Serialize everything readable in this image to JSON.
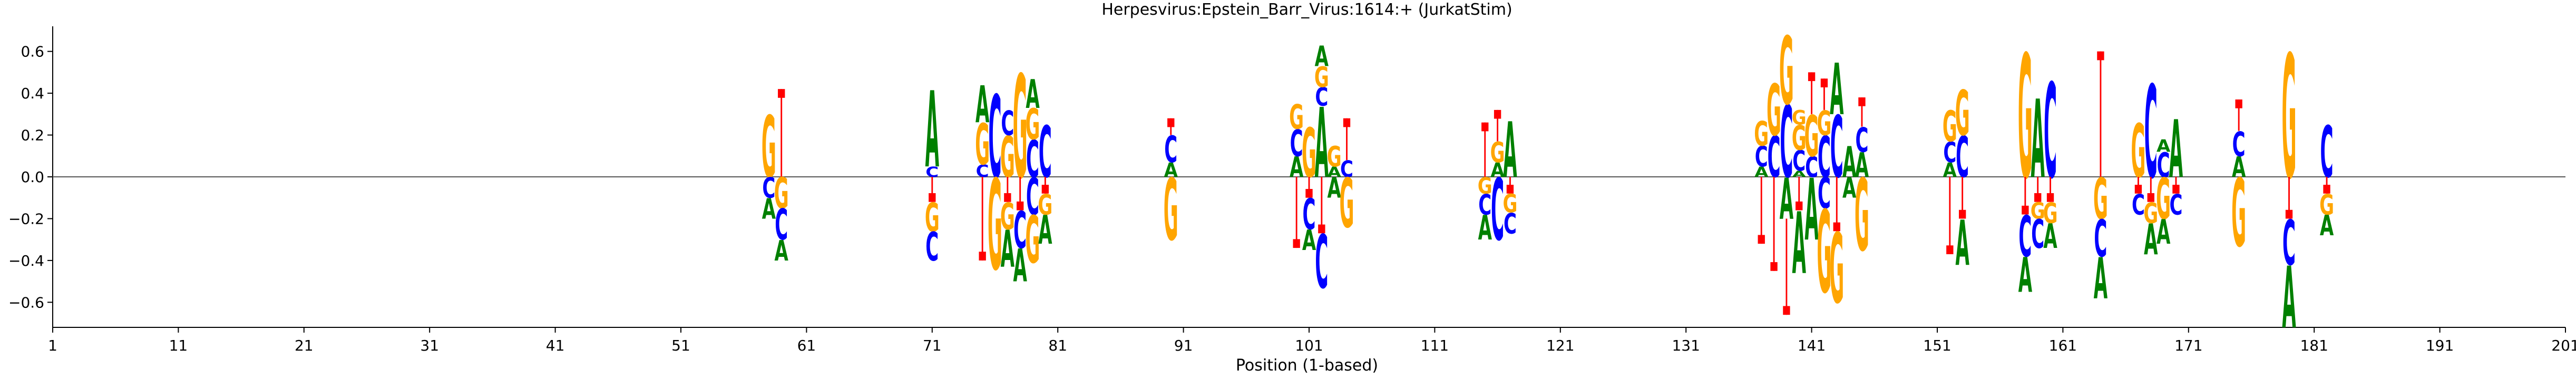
{
  "chart_data": {
    "type": "sequence_logo",
    "title": "Herpesvirus:Epstein_Barr_Virus:1614:+  (JurkatStim)",
    "xlabel": "Position (1-based)",
    "ylabel": "",
    "xlim": [
      1,
      201
    ],
    "ylim": [
      -0.72,
      0.72
    ],
    "xticks": [
      1,
      11,
      21,
      31,
      41,
      51,
      61,
      71,
      81,
      91,
      101,
      111,
      121,
      131,
      141,
      151,
      161,
      171,
      181,
      191,
      201
    ],
    "yticks": [
      -0.6,
      -0.4,
      -0.2,
      0.0,
      0.2,
      0.4,
      0.6
    ],
    "ytick_labels": [
      "−0.6",
      "−0.4",
      "−0.2",
      "0.0",
      "0.2",
      "0.4",
      "0.6"
    ],
    "colors": {
      "A": "#008000",
      "C": "#0000ff",
      "G": "#ffa500",
      "T": "#ff0000",
      "axis": "#000000"
    },
    "positions": [
      {
        "x": 58,
        "above": [
          [
            "G",
            0.3
          ]
        ],
        "below": [
          [
            "C",
            0.1
          ],
          [
            "A",
            0.1
          ]
        ]
      },
      {
        "x": 59,
        "above": [
          [
            "T",
            0.42
          ]
        ],
        "below": [
          [
            "G",
            0.15
          ],
          [
            "C",
            0.15
          ],
          [
            "A",
            0.1
          ]
        ]
      },
      {
        "x": 71,
        "above": [
          [
            "C",
            0.05
          ],
          [
            "A",
            0.37
          ]
        ],
        "below": [
          [
            "T",
            0.12
          ],
          [
            "G",
            0.14
          ],
          [
            "C",
            0.14
          ]
        ]
      },
      {
        "x": 75,
        "above": [
          [
            "C",
            0.06
          ],
          [
            "G",
            0.2
          ],
          [
            "A",
            0.18
          ]
        ],
        "below": [
          [
            "T",
            0.4
          ]
        ]
      },
      {
        "x": 76,
        "above": [
          [
            "C",
            0.4
          ]
        ],
        "below": [
          [
            "G",
            0.44
          ]
        ]
      },
      {
        "x": 77,
        "above": [
          [
            "G",
            0.2
          ],
          [
            "C",
            0.12
          ]
        ],
        "below": [
          [
            "T",
            0.12
          ],
          [
            "G",
            0.13
          ],
          [
            "A",
            0.18
          ]
        ]
      },
      {
        "x": 78,
        "above": [
          [
            "G",
            0.5
          ]
        ],
        "below": [
          [
            "T",
            0.16
          ],
          [
            "C",
            0.18
          ],
          [
            "A",
            0.16
          ]
        ]
      },
      {
        "x": 79,
        "above": [
          [
            "C",
            0.18
          ],
          [
            "G",
            0.15
          ],
          [
            "A",
            0.14
          ]
        ],
        "below": [
          [
            "C",
            0.18
          ],
          [
            "G",
            0.23
          ]
        ]
      },
      {
        "x": 80,
        "above": [
          [
            "C",
            0.25
          ]
        ],
        "below": [
          [
            "T",
            0.08
          ],
          [
            "G",
            0.1
          ],
          [
            "A",
            0.14
          ]
        ]
      },
      {
        "x": 90,
        "above": [
          [
            "A",
            0.07
          ],
          [
            "C",
            0.13
          ],
          [
            "T",
            0.08
          ]
        ],
        "below": [
          [
            "G",
            0.3
          ]
        ]
      },
      {
        "x": 100,
        "above": [
          [
            "A",
            0.1
          ],
          [
            "C",
            0.13
          ],
          [
            "G",
            0.12
          ]
        ],
        "below": [
          [
            "T",
            0.34
          ]
        ]
      },
      {
        "x": 101,
        "above": [
          [
            "G",
            0.24
          ]
        ],
        "below": [
          [
            "T",
            0.1
          ],
          [
            "C",
            0.15
          ],
          [
            "A",
            0.1
          ]
        ]
      },
      {
        "x": 102,
        "above": [
          [
            "A",
            0.34
          ],
          [
            "C",
            0.09
          ],
          [
            "G",
            0.1
          ],
          [
            "A",
            0.1
          ]
        ],
        "below": [
          [
            "T",
            0.27
          ],
          [
            "C",
            0.26
          ]
        ]
      },
      {
        "x": 103,
        "above": [
          [
            "A",
            0.05
          ],
          [
            "G",
            0.1
          ]
        ],
        "below": [
          [
            "A",
            0.1
          ]
        ]
      },
      {
        "x": 104,
        "above": [
          [
            "C",
            0.08
          ],
          [
            "T",
            0.2
          ]
        ],
        "below": [
          [
            "G",
            0.24
          ]
        ]
      },
      {
        "x": 115,
        "above": [
          [
            "T",
            0.26
          ]
        ],
        "below": [
          [
            "G",
            0.08
          ],
          [
            "C",
            0.1
          ],
          [
            "A",
            0.12
          ]
        ]
      },
      {
        "x": 116,
        "above": [
          [
            "A",
            0.07
          ],
          [
            "G",
            0.1
          ],
          [
            "T",
            0.15
          ]
        ],
        "below": [
          [
            "C",
            0.3
          ]
        ]
      },
      {
        "x": 117,
        "above": [
          [
            "A",
            0.27
          ]
        ],
        "below": [
          [
            "T",
            0.08
          ],
          [
            "G",
            0.09
          ],
          [
            "C",
            0.1
          ]
        ]
      },
      {
        "x": 137,
        "above": [
          [
            "A",
            0.05
          ],
          [
            "C",
            0.1
          ],
          [
            "G",
            0.12
          ]
        ],
        "below": [
          [
            "T",
            0.32
          ]
        ]
      },
      {
        "x": 138,
        "above": [
          [
            "C",
            0.2
          ],
          [
            "G",
            0.25
          ]
        ],
        "below": [
          [
            "T",
            0.45
          ]
        ]
      },
      {
        "x": 139,
        "above": [
          [
            "C",
            0.35
          ],
          [
            "G",
            0.33
          ]
        ],
        "below": [
          [
            "A",
            0.2
          ],
          [
            "T",
            0.46
          ]
        ]
      },
      {
        "x": 140,
        "above": [
          [
            "A",
            0.03
          ],
          [
            "C",
            0.1
          ],
          [
            "G",
            0.12
          ],
          [
            "G",
            0.07
          ]
        ],
        "below": [
          [
            "T",
            0.16
          ],
          [
            "A",
            0.3
          ]
        ]
      },
      {
        "x": 141,
        "above": [
          [
            "C",
            0.1
          ],
          [
            "G",
            0.2
          ],
          [
            "T",
            0.2
          ]
        ],
        "below": [
          [
            "A",
            0.3
          ]
        ]
      },
      {
        "x": 142,
        "above": [
          [
            "C",
            0.2
          ],
          [
            "G",
            0.12
          ],
          [
            "T",
            0.15
          ]
        ],
        "below": [
          [
            "C",
            0.15
          ],
          [
            "G",
            0.4
          ]
        ]
      },
      {
        "x": 143,
        "above": [
          [
            "C",
            0.3
          ],
          [
            "A",
            0.25
          ]
        ],
        "below": [
          [
            "T",
            0.26
          ],
          [
            "G",
            0.34
          ]
        ]
      },
      {
        "x": 144,
        "above": [
          [
            "A",
            0.15
          ]
        ],
        "below": [
          [
            "A",
            0.1
          ]
        ]
      },
      {
        "x": 145,
        "above": [
          [
            "A",
            0.12
          ],
          [
            "C",
            0.12
          ],
          [
            "T",
            0.14
          ]
        ],
        "below": [
          [
            "G",
            0.35
          ]
        ]
      },
      {
        "x": 152,
        "above": [
          [
            "A",
            0.07
          ],
          [
            "C",
            0.1
          ],
          [
            "G",
            0.15
          ]
        ],
        "below": [
          [
            "T",
            0.37
          ]
        ]
      },
      {
        "x": 153,
        "above": [
          [
            "C",
            0.2
          ],
          [
            "G",
            0.22
          ]
        ],
        "below": [
          [
            "T",
            0.2
          ],
          [
            "A",
            0.22
          ]
        ]
      },
      {
        "x": 158,
        "above": [
          [
            "G",
            0.6
          ]
        ],
        "below": [
          [
            "T",
            0.18
          ],
          [
            "C",
            0.2
          ],
          [
            "A",
            0.17
          ]
        ]
      },
      {
        "x": 159,
        "above": [
          [
            "A",
            0.38
          ]
        ],
        "below": [
          [
            "T",
            0.12
          ],
          [
            "G",
            0.08
          ],
          [
            "C",
            0.14
          ]
        ]
      },
      {
        "x": 160,
        "above": [
          [
            "C",
            0.46
          ]
        ],
        "below": [
          [
            "T",
            0.12
          ],
          [
            "G",
            0.1
          ],
          [
            "A",
            0.12
          ]
        ]
      },
      {
        "x": 164,
        "above": [
          [
            "T",
            0.6
          ]
        ],
        "below": [
          [
            "G",
            0.2
          ],
          [
            "C",
            0.18
          ],
          [
            "A",
            0.2
          ]
        ]
      },
      {
        "x": 167,
        "above": [
          [
            "G",
            0.26
          ]
        ],
        "below": [
          [
            "T",
            0.08
          ],
          [
            "C",
            0.1
          ]
        ]
      },
      {
        "x": 168,
        "above": [
          [
            "C",
            0.45
          ]
        ],
        "below": [
          [
            "T",
            0.12
          ],
          [
            "G",
            0.1
          ],
          [
            "A",
            0.15
          ]
        ]
      },
      {
        "x": 169,
        "above": [
          [
            "C",
            0.12
          ],
          [
            "A",
            0.06
          ]
        ],
        "below": [
          [
            "G",
            0.2
          ],
          [
            "A",
            0.12
          ]
        ]
      },
      {
        "x": 170,
        "above": [
          [
            "A",
            0.28
          ]
        ],
        "below": [
          [
            "T",
            0.08
          ],
          [
            "C",
            0.1
          ]
        ]
      },
      {
        "x": 175,
        "above": [
          [
            "A",
            0.1
          ],
          [
            "C",
            0.12
          ],
          [
            "T",
            0.15
          ]
        ],
        "below": [
          [
            "G",
            0.33
          ]
        ]
      },
      {
        "x": 179,
        "above": [
          [
            "G",
            0.6
          ]
        ],
        "below": [
          [
            "T",
            0.2
          ],
          [
            "C",
            0.22
          ],
          [
            "A",
            0.3
          ]
        ]
      },
      {
        "x": 182,
        "above": [
          [
            "C",
            0.25
          ]
        ],
        "below": [
          [
            "T",
            0.08
          ],
          [
            "G",
            0.1
          ],
          [
            "A",
            0.1
          ]
        ]
      }
    ]
  }
}
